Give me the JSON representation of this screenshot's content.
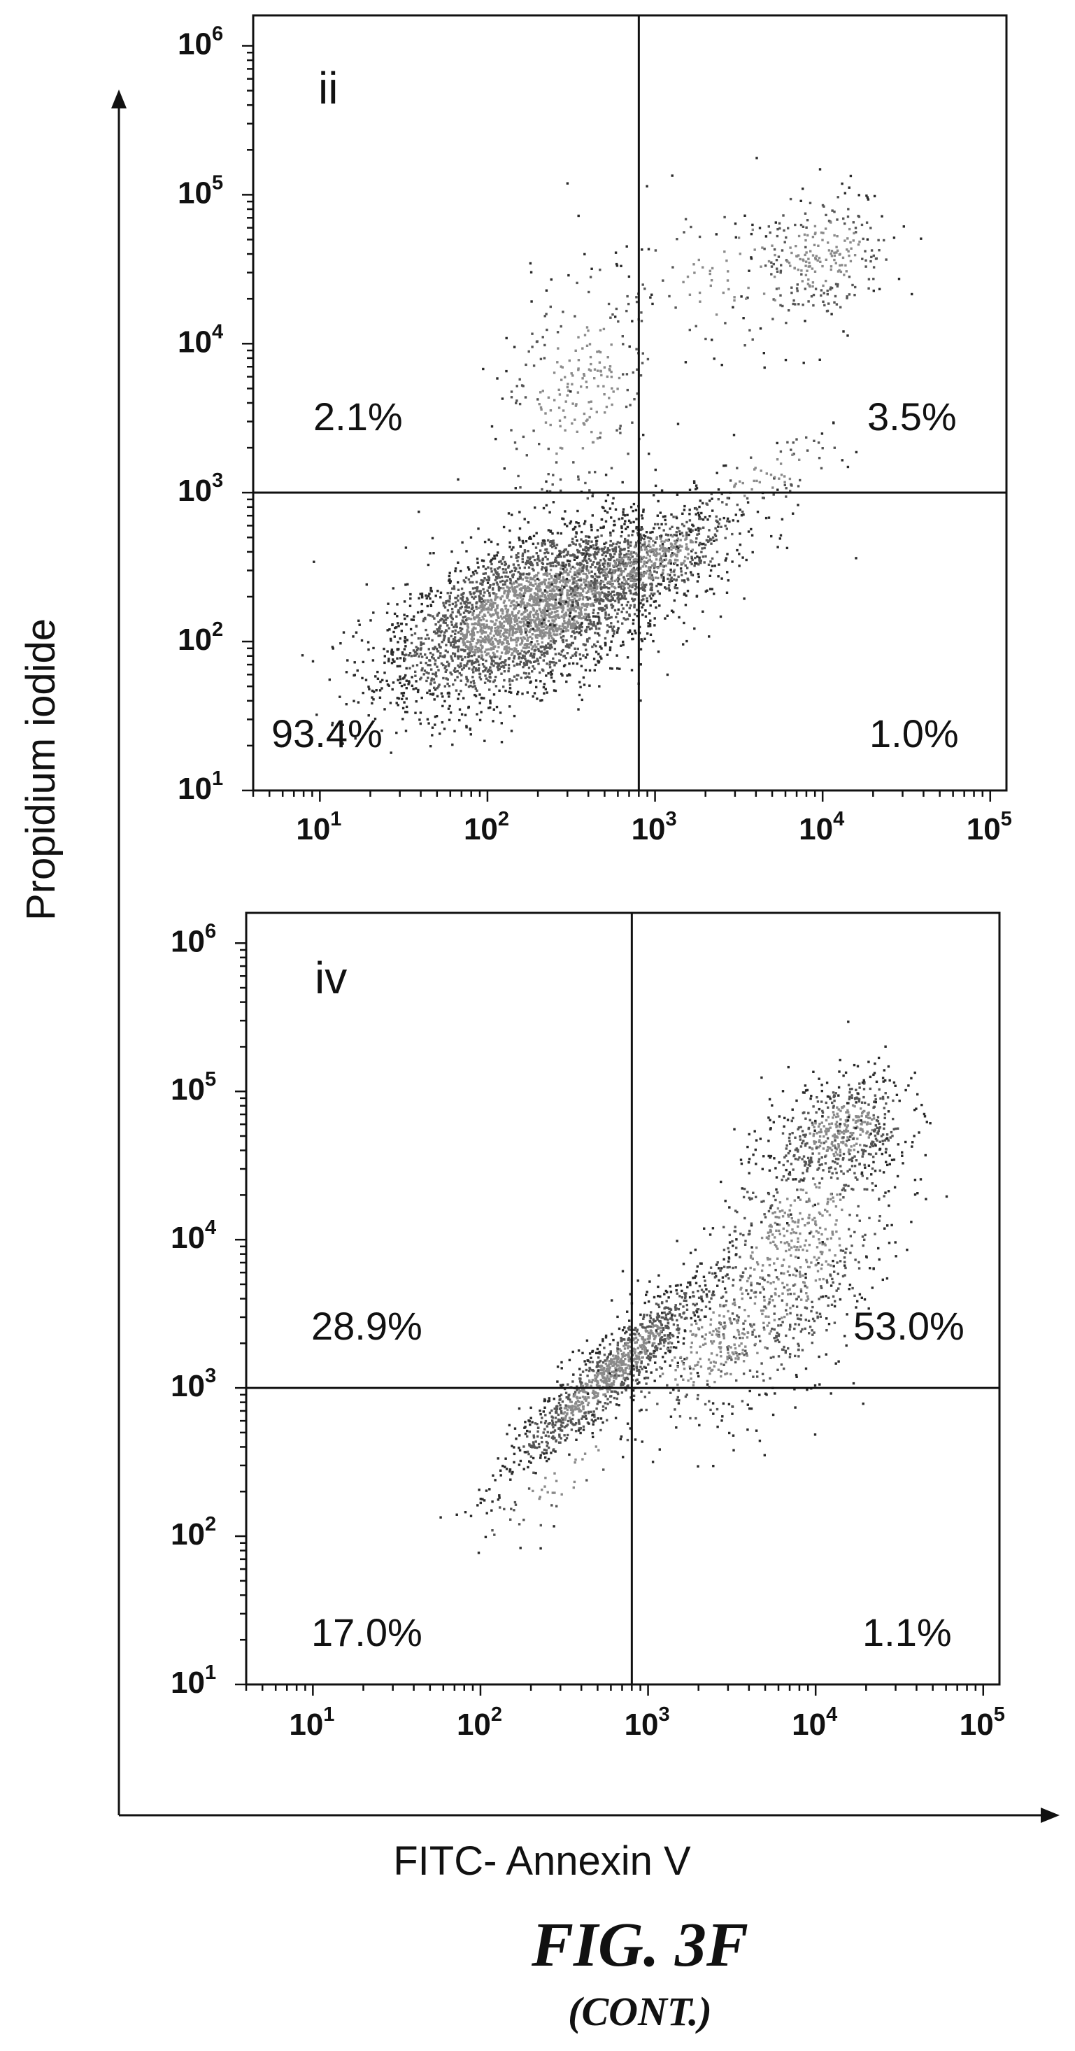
{
  "chart_data": [
    {
      "type": "scatter",
      "panel_label": "ii",
      "x_scale": "log",
      "y_scale": "log",
      "xlim": [
        4,
        125000
      ],
      "ylim": [
        10,
        1600000
      ],
      "x_ticks": [
        {
          "base": "10",
          "exp": "1",
          "value": 10
        },
        {
          "base": "10",
          "exp": "2",
          "value": 100
        },
        {
          "base": "10",
          "exp": "3",
          "value": 1000
        },
        {
          "base": "10",
          "exp": "4",
          "value": 10000
        },
        {
          "base": "10",
          "exp": "5",
          "value": 100000
        }
      ],
      "y_ticks": [
        {
          "base": "10",
          "exp": "1",
          "value": 10
        },
        {
          "base": "10",
          "exp": "2",
          "value": 100
        },
        {
          "base": "10",
          "exp": "3",
          "value": 1000
        },
        {
          "base": "10",
          "exp": "4",
          "value": 10000
        },
        {
          "base": "10",
          "exp": "5",
          "value": 100000
        },
        {
          "base": "10",
          "exp": "6",
          "value": 1000000
        }
      ],
      "gate_x": 800,
      "gate_y": 1000,
      "quadrants": {
        "upper_left": "2.1%",
        "upper_right": "3.5%",
        "lower_left": "93.4%",
        "lower_right": "1.0%"
      },
      "populations": [
        {
          "cx": 180,
          "cy": 160,
          "sx": 0.42,
          "sy": 0.3,
          "rho": 0.55,
          "n": 3400,
          "seed": 11
        },
        {
          "cx": 900,
          "cy": 350,
          "sx": 0.28,
          "sy": 0.18,
          "rho": 0.6,
          "n": 650,
          "seed": 12
        },
        {
          "cx": 350,
          "cy": 5000,
          "sx": 0.25,
          "sy": 0.45,
          "rho": 0.3,
          "n": 260,
          "seed": 13
        },
        {
          "cx": 10000,
          "cy": 40000,
          "sx": 0.22,
          "sy": 0.22,
          "rho": 0.2,
          "n": 260,
          "seed": 14
        },
        {
          "cx": 3000,
          "cy": 30000,
          "sx": 0.35,
          "sy": 0.3,
          "rho": 0.2,
          "n": 90,
          "seed": 15
        },
        {
          "cx": 4500,
          "cy": 1300,
          "sx": 0.25,
          "sy": 0.15,
          "rho": 0.7,
          "n": 90,
          "seed": 16
        }
      ]
    },
    {
      "type": "scatter",
      "panel_label": "iv",
      "x_scale": "log",
      "y_scale": "log",
      "xlim": [
        4,
        125000
      ],
      "ylim": [
        10,
        1600000
      ],
      "x_ticks": [
        {
          "base": "10",
          "exp": "1",
          "value": 10
        },
        {
          "base": "10",
          "exp": "2",
          "value": 100
        },
        {
          "base": "10",
          "exp": "3",
          "value": 1000
        },
        {
          "base": "10",
          "exp": "4",
          "value": 10000
        },
        {
          "base": "10",
          "exp": "5",
          "value": 100000
        }
      ],
      "y_ticks": [
        {
          "base": "10",
          "exp": "1",
          "value": 10
        },
        {
          "base": "10",
          "exp": "2",
          "value": 100
        },
        {
          "base": "10",
          "exp": "3",
          "value": 1000
        },
        {
          "base": "10",
          "exp": "4",
          "value": 10000
        },
        {
          "base": "10",
          "exp": "5",
          "value": 100000
        },
        {
          "base": "10",
          "exp": "6",
          "value": 1000000
        }
      ],
      "gate_x": 800,
      "gate_y": 1000,
      "quadrants": {
        "upper_left": "28.9%",
        "upper_right": "53.0%",
        "lower_left": "17.0%",
        "lower_right": "1.1%"
      },
      "populations": [
        {
          "cx": 600,
          "cy": 1300,
          "sx": 0.3,
          "sy": 0.32,
          "rho": 0.93,
          "n": 1100,
          "seed": 21
        },
        {
          "cx": 14000,
          "cy": 55000,
          "sx": 0.2,
          "sy": 0.18,
          "rho": 0.3,
          "n": 500,
          "seed": 22
        },
        {
          "cx": 7000,
          "cy": 8000,
          "sx": 0.32,
          "sy": 0.48,
          "rho": 0.5,
          "n": 700,
          "seed": 23
        },
        {
          "cx": 2500,
          "cy": 2000,
          "sx": 0.35,
          "sy": 0.3,
          "rho": 0.4,
          "n": 400,
          "seed": 24
        },
        {
          "cx": 300,
          "cy": 250,
          "sx": 0.25,
          "sy": 0.25,
          "rho": 0.85,
          "n": 60,
          "seed": 25
        }
      ]
    }
  ],
  "axes": {
    "ylabel": "Propidium iodide",
    "xlabel": "FITC- Annexin V"
  },
  "figure": {
    "title": "FIG. 3F",
    "subtitle": "(CONT.)"
  }
}
